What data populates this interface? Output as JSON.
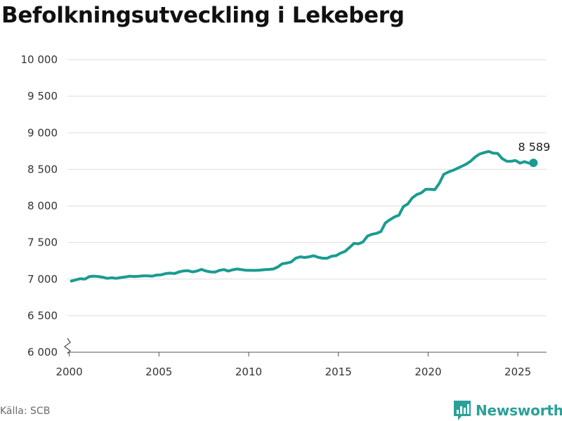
{
  "header": {
    "title": "Befolkningsutveckling i Lekeberg"
  },
  "footer": {
    "source": "Källa: SCB",
    "brand": "Newsworthy"
  },
  "colors": {
    "line": "#1a9c91",
    "grid": "#dddddd",
    "brand": "#2aa198"
  },
  "chart_data": {
    "type": "line",
    "title": "Befolkningsutveckling i Lekeberg",
    "xlabel": "",
    "ylabel": "",
    "xlim": [
      1999.9,
      2026.6
    ],
    "ylim": [
      6000,
      10000
    ],
    "y_axis_break": true,
    "grid": true,
    "x_ticks": [
      {
        "value": 2000,
        "label": "2000"
      },
      {
        "value": 2005,
        "label": "2005"
      },
      {
        "value": 2010,
        "label": "2010"
      },
      {
        "value": 2015,
        "label": "2015"
      },
      {
        "value": 2020,
        "label": "2020"
      },
      {
        "value": 2025,
        "label": "2025"
      }
    ],
    "y_ticks": [
      {
        "value": 6000,
        "label": "6 000"
      },
      {
        "value": 6500,
        "label": "6 500"
      },
      {
        "value": 7000,
        "label": "7 000"
      },
      {
        "value": 7500,
        "label": "7 500"
      },
      {
        "value": 8000,
        "label": "8 000"
      },
      {
        "value": 8500,
        "label": "8 500"
      },
      {
        "value": 9000,
        "label": "9 000"
      },
      {
        "value": 9500,
        "label": "9 500"
      },
      {
        "value": 10000,
        "label": "10 000"
      }
    ],
    "end_label": "8 589",
    "series": [
      {
        "points": [
          [
            2000.12,
            6973
          ],
          [
            2000.37,
            6990
          ],
          [
            2000.62,
            7005
          ],
          [
            2000.87,
            7000
          ],
          [
            2001.12,
            7035
          ],
          [
            2001.37,
            7040
          ],
          [
            2001.62,
            7035
          ],
          [
            2001.87,
            7025
          ],
          [
            2002.12,
            7010
          ],
          [
            2002.37,
            7018
          ],
          [
            2002.62,
            7010
          ],
          [
            2002.87,
            7022
          ],
          [
            2003.12,
            7028
          ],
          [
            2003.37,
            7040
          ],
          [
            2003.62,
            7035
          ],
          [
            2003.87,
            7038
          ],
          [
            2004.12,
            7045
          ],
          [
            2004.37,
            7045
          ],
          [
            2004.62,
            7040
          ],
          [
            2004.87,
            7055
          ],
          [
            2005.12,
            7058
          ],
          [
            2005.37,
            7075
          ],
          [
            2005.62,
            7082
          ],
          [
            2005.87,
            7075
          ],
          [
            2006.12,
            7098
          ],
          [
            2006.37,
            7112
          ],
          [
            2006.62,
            7115
          ],
          [
            2006.87,
            7098
          ],
          [
            2007.12,
            7110
          ],
          [
            2007.37,
            7132
          ],
          [
            2007.62,
            7110
          ],
          [
            2007.87,
            7098
          ],
          [
            2008.12,
            7095
          ],
          [
            2008.37,
            7118
          ],
          [
            2008.62,
            7130
          ],
          [
            2008.87,
            7110
          ],
          [
            2009.12,
            7128
          ],
          [
            2009.37,
            7138
          ],
          [
            2009.62,
            7128
          ],
          [
            2009.87,
            7120
          ],
          [
            2010.12,
            7120
          ],
          [
            2010.37,
            7118
          ],
          [
            2010.62,
            7122
          ],
          [
            2010.87,
            7128
          ],
          [
            2011.12,
            7132
          ],
          [
            2011.37,
            7138
          ],
          [
            2011.62,
            7165
          ],
          [
            2011.87,
            7210
          ],
          [
            2012.12,
            7218
          ],
          [
            2012.37,
            7235
          ],
          [
            2012.62,
            7285
          ],
          [
            2012.87,
            7305
          ],
          [
            2013.12,
            7295
          ],
          [
            2013.37,
            7305
          ],
          [
            2013.62,
            7320
          ],
          [
            2013.87,
            7298
          ],
          [
            2014.12,
            7285
          ],
          [
            2014.37,
            7285
          ],
          [
            2014.62,
            7312
          ],
          [
            2014.87,
            7320
          ],
          [
            2015.12,
            7355
          ],
          [
            2015.37,
            7378
          ],
          [
            2015.62,
            7432
          ],
          [
            2015.87,
            7488
          ],
          [
            2016.12,
            7482
          ],
          [
            2016.37,
            7508
          ],
          [
            2016.62,
            7588
          ],
          [
            2016.87,
            7612
          ],
          [
            2017.12,
            7625
          ],
          [
            2017.37,
            7650
          ],
          [
            2017.62,
            7768
          ],
          [
            2017.87,
            7812
          ],
          [
            2018.12,
            7848
          ],
          [
            2018.37,
            7872
          ],
          [
            2018.62,
            7990
          ],
          [
            2018.87,
            8028
          ],
          [
            2019.12,
            8110
          ],
          [
            2019.37,
            8155
          ],
          [
            2019.62,
            8178
          ],
          [
            2019.87,
            8228
          ],
          [
            2020.12,
            8228
          ],
          [
            2020.37,
            8222
          ],
          [
            2020.62,
            8308
          ],
          [
            2020.87,
            8432
          ],
          [
            2021.12,
            8462
          ],
          [
            2021.37,
            8485
          ],
          [
            2021.62,
            8512
          ],
          [
            2021.87,
            8542
          ],
          [
            2022.12,
            8572
          ],
          [
            2022.37,
            8612
          ],
          [
            2022.62,
            8668
          ],
          [
            2022.87,
            8710
          ],
          [
            2023.12,
            8728
          ],
          [
            2023.37,
            8745
          ],
          [
            2023.62,
            8722
          ],
          [
            2023.87,
            8718
          ],
          [
            2024.12,
            8648
          ],
          [
            2024.37,
            8612
          ],
          [
            2024.62,
            8610
          ],
          [
            2024.87,
            8622
          ],
          [
            2025.12,
            8585
          ],
          [
            2025.37,
            8605
          ],
          [
            2025.62,
            8585
          ],
          [
            2025.87,
            8589
          ]
        ]
      }
    ]
  }
}
